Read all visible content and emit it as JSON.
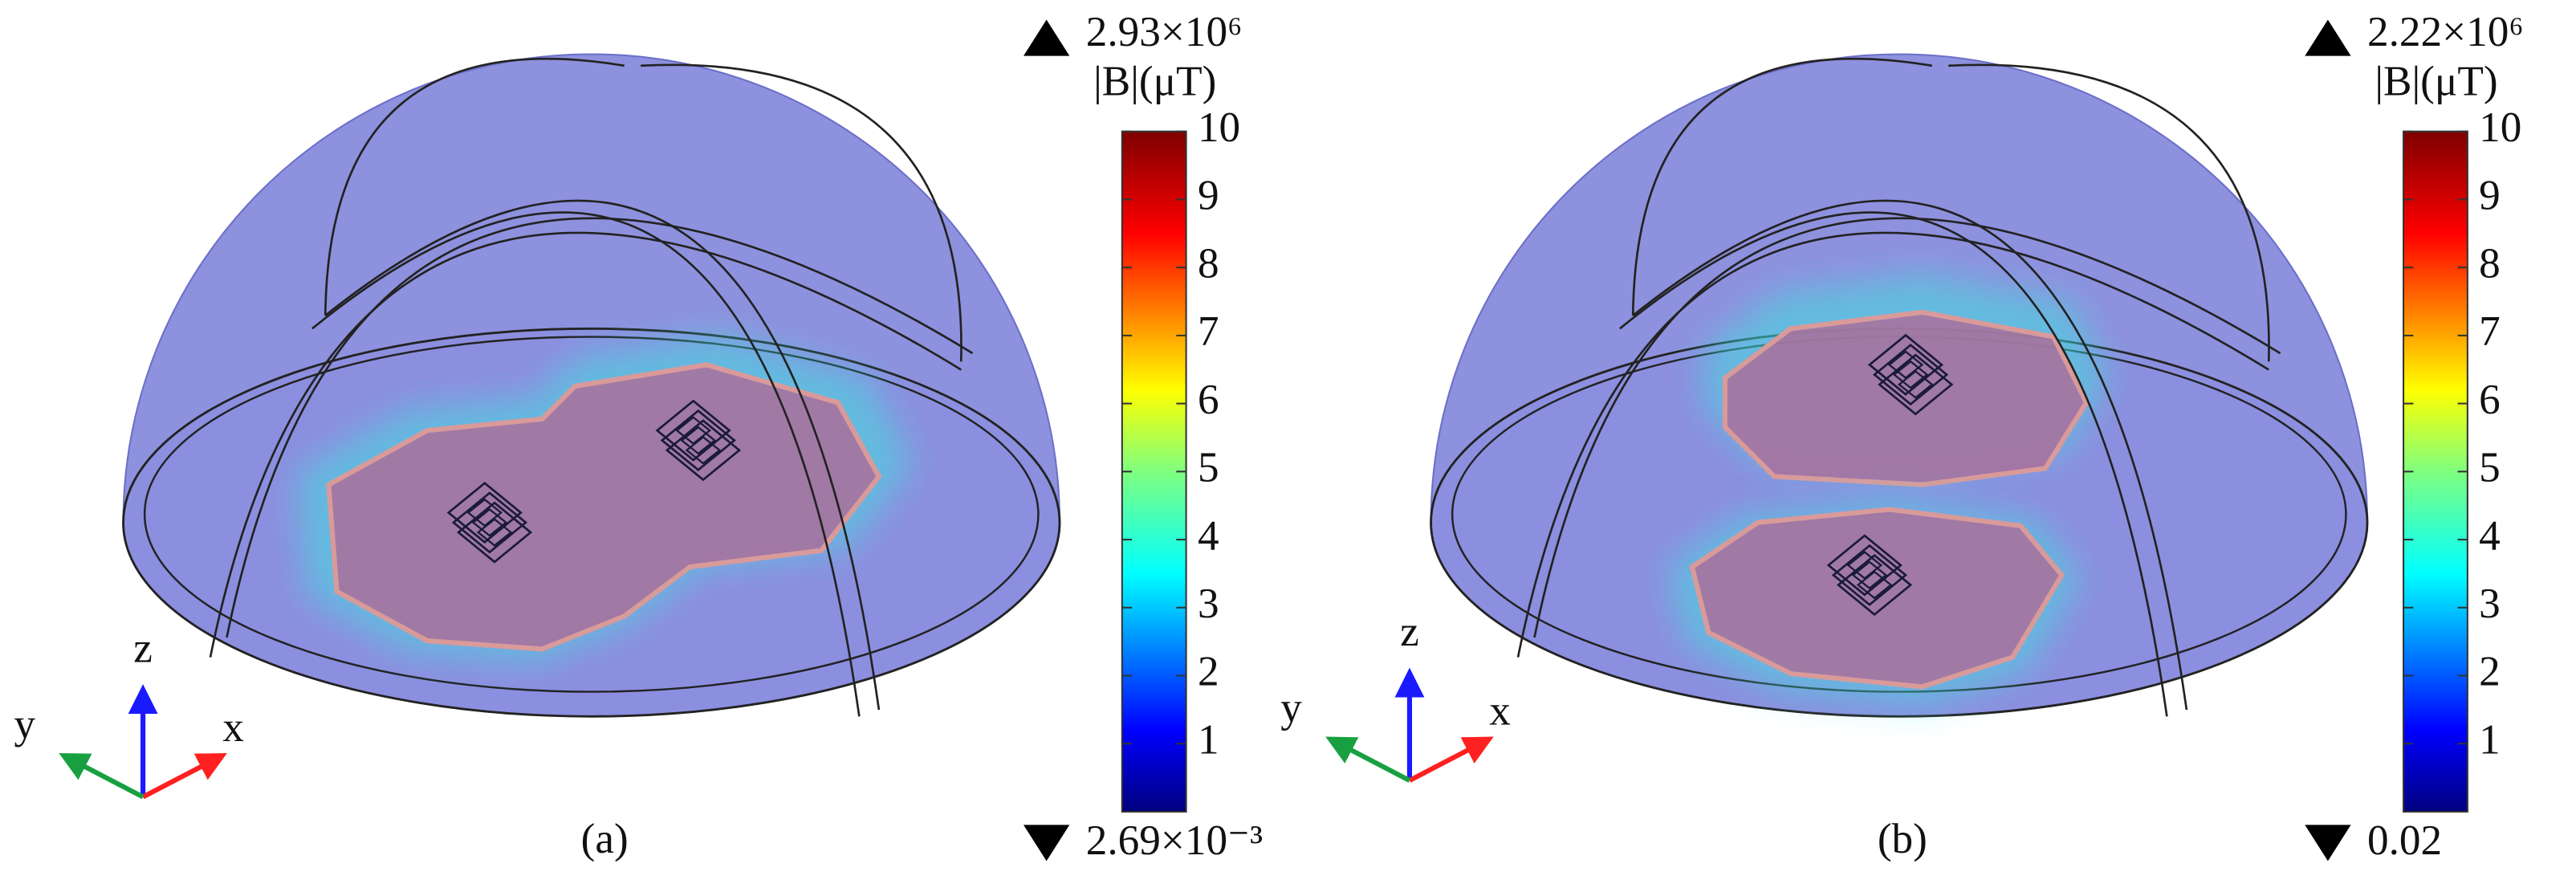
{
  "panels": [
    {
      "label": "(a)",
      "colorbar": {
        "max_label": "2.93×10⁶",
        "unit_label": "|B|(μT)",
        "ticks": [
          1,
          2,
          3,
          4,
          5,
          6,
          7,
          8,
          9,
          10
        ],
        "min_label": "2.69×10⁻³"
      },
      "axes": {
        "x": "x",
        "y": "y",
        "z": "z"
      }
    },
    {
      "label": "(b)",
      "colorbar": {
        "max_label": "2.22×10⁶",
        "unit_label": "|B|(μT)",
        "ticks": [
          1,
          2,
          3,
          4,
          5,
          6,
          7,
          8,
          9,
          10
        ],
        "min_label": "0.02"
      },
      "axes": {
        "x": "x",
        "y": "y",
        "z": "z"
      }
    }
  ]
}
